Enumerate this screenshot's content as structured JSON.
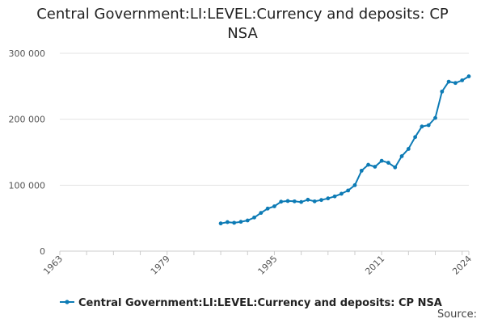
{
  "chart_data": {
    "type": "line",
    "title_line1": "Central Government:LI:LEVEL:Currency and deposits: CP",
    "title_line2": "NSA",
    "xlabel": "",
    "ylabel": "",
    "xlim": [
      1963,
      2024
    ],
    "ylim": [
      0,
      300000
    ],
    "y_ticks": [
      0,
      100000,
      200000,
      300000
    ],
    "y_tick_labels": [
      "0",
      "100 000",
      "200 000",
      "300 000"
    ],
    "x_ticks": [
      1963,
      1979,
      1995,
      2011,
      2024
    ],
    "x_tick_labels": [
      "1963",
      "1979",
      "1995",
      "2011",
      "2024"
    ],
    "grid": true,
    "legend_position": "bottom",
    "series": [
      {
        "name": "Central Government:LI:LEVEL:Currency and deposits: CP NSA",
        "color": "#0d7bb5",
        "x": [
          1987,
          1988,
          1989,
          1990,
          1991,
          1992,
          1993,
          1994,
          1995,
          1996,
          1997,
          1998,
          1999,
          2000,
          2001,
          2002,
          2003,
          2004,
          2005,
          2006,
          2007,
          2008,
          2009,
          2010,
          2011,
          2012,
          2013,
          2014,
          2015,
          2016,
          2017,
          2018,
          2019,
          2020,
          2021,
          2022,
          2023,
          2024
        ],
        "y": [
          42000,
          44000,
          43000,
          44500,
          46500,
          51000,
          58000,
          64500,
          68000,
          75000,
          76000,
          75500,
          74500,
          78000,
          75500,
          77500,
          80000,
          83000,
          87000,
          92000,
          100000,
          122000,
          131000,
          128000,
          137000,
          134000,
          127000,
          144000,
          155000,
          173000,
          189000,
          191000,
          202000,
          242000,
          257000,
          255000,
          259000,
          265000
        ]
      }
    ]
  },
  "legend": {
    "label": "Central Government:LI:LEVEL:Currency and deposits: CP NSA"
  },
  "source": {
    "label": "Source:"
  }
}
